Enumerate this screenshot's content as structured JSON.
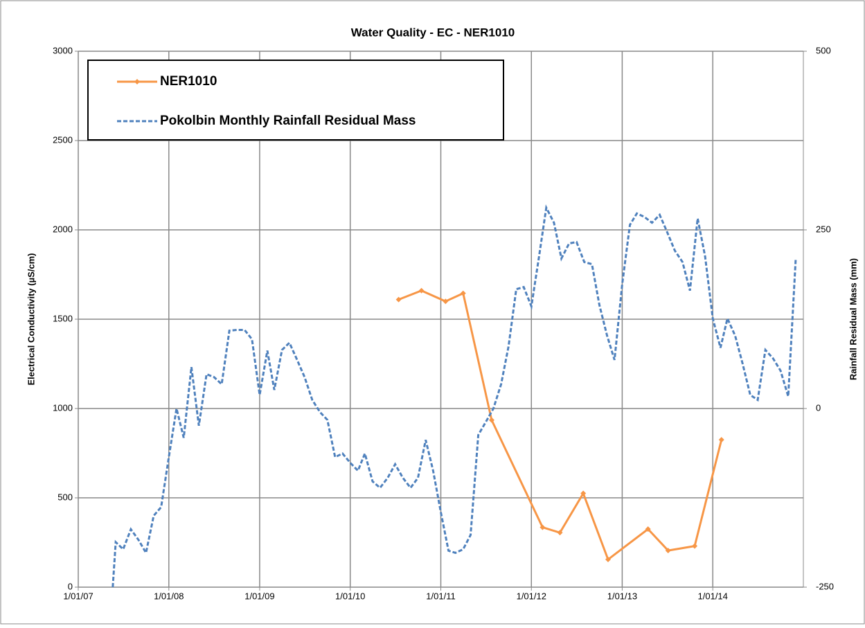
{
  "chart_data": {
    "type": "line",
    "title": "Water Quality - EC - NER1010",
    "y_label": "Electrical Conductivity (µS/cm)",
    "y2_label": "Rainfall Residual Mass (mm)",
    "xlim": [
      "2007-01-01",
      "2015-01-01"
    ],
    "xticks": [
      {
        "value": "2007-01-01",
        "label": "1/01/07"
      },
      {
        "value": "2008-01-01",
        "label": "1/01/08"
      },
      {
        "value": "2009-01-01",
        "label": "1/01/09"
      },
      {
        "value": "2010-01-01",
        "label": "1/01/10"
      },
      {
        "value": "2011-01-01",
        "label": "1/01/11"
      },
      {
        "value": "2012-01-01",
        "label": "1/01/12"
      },
      {
        "value": "2013-01-01",
        "label": "1/01/13"
      },
      {
        "value": "2014-01-01",
        "label": "1/01/14"
      }
    ],
    "ylim": [
      0,
      3000
    ],
    "yticks": [
      0,
      500,
      1000,
      1500,
      2000,
      2500,
      3000
    ],
    "y2lim": [
      -250,
      500
    ],
    "y2ticks": [
      -250,
      0,
      250,
      500
    ],
    "grid": true,
    "legend": "upper left",
    "series": [
      {
        "name": "NER1010",
        "color": "#f79646",
        "dash": false,
        "markers": true,
        "axis": "y",
        "x": [
          "2010-07-15",
          "2010-10-15",
          "2011-01-20",
          "2011-04-01",
          "2011-07-25",
          "2012-02-15",
          "2012-04-25",
          "2012-07-28",
          "2012-11-05",
          "2013-04-15",
          "2013-07-05",
          "2013-10-20",
          "2014-02-05"
        ],
        "values": [
          1610,
          1660,
          1600,
          1645,
          935,
          335,
          305,
          525,
          155,
          325,
          205,
          230,
          825
        ]
      },
      {
        "name": "Pokolbin Monthly Rainfall Residual Mass",
        "color": "#4f81bd",
        "dash": true,
        "markers": false,
        "axis": "y2",
        "x": [
          "2007-05-20",
          "2007-06-01",
          "2007-07-01",
          "2007-08-01",
          "2007-09-01",
          "2007-10-01",
          "2007-11-01",
          "2007-12-01",
          "2008-01-01",
          "2008-02-01",
          "2008-03-01",
          "2008-04-01",
          "2008-05-01",
          "2008-06-01",
          "2008-07-01",
          "2008-08-01",
          "2008-09-01",
          "2008-10-01",
          "2008-11-01",
          "2008-12-01",
          "2009-01-01",
          "2009-02-01",
          "2009-03-01",
          "2009-04-01",
          "2009-05-01",
          "2009-06-01",
          "2009-07-01",
          "2009-08-01",
          "2009-09-01",
          "2009-10-01",
          "2009-11-01",
          "2009-12-01",
          "2010-01-01",
          "2010-02-01",
          "2010-03-01",
          "2010-04-01",
          "2010-05-01",
          "2010-06-01",
          "2010-07-01",
          "2010-08-01",
          "2010-09-01",
          "2010-10-01",
          "2010-11-01",
          "2010-12-01",
          "2011-01-01",
          "2011-02-01",
          "2011-03-01",
          "2011-04-01",
          "2011-05-01",
          "2011-06-01",
          "2011-07-01",
          "2011-08-01",
          "2011-09-01",
          "2011-10-01",
          "2011-11-01",
          "2011-12-01",
          "2012-01-01",
          "2012-02-01",
          "2012-03-01",
          "2012-04-01",
          "2012-05-01",
          "2012-06-01",
          "2012-07-01",
          "2012-08-01",
          "2012-09-01",
          "2012-10-01",
          "2012-11-01",
          "2012-12-01",
          "2013-01-01",
          "2013-02-01",
          "2013-03-01",
          "2013-04-01",
          "2013-05-01",
          "2013-06-01",
          "2013-07-01",
          "2013-08-01",
          "2013-09-01",
          "2013-10-01",
          "2013-11-01",
          "2013-12-01",
          "2014-01-01",
          "2014-02-01",
          "2014-03-01",
          "2014-04-01",
          "2014-05-01",
          "2014-06-01",
          "2014-07-01",
          "2014-08-01",
          "2014-09-01",
          "2014-10-01",
          "2014-11-01",
          "2014-12-01"
        ],
        "values": [
          -250,
          -187,
          -197,
          -169,
          -184,
          -202,
          -150,
          -138,
          -68,
          0,
          -41,
          58,
          -24,
          48,
          44,
          34,
          109,
          110,
          110,
          97,
          19,
          81,
          26,
          82,
          92,
          68,
          44,
          12,
          -5,
          -16,
          -68,
          -63,
          -76,
          -87,
          -63,
          -102,
          -111,
          -97,
          -78,
          -97,
          -111,
          -97,
          -44,
          -87,
          -145,
          -199,
          -202,
          -197,
          -177,
          -37,
          -19,
          0,
          34,
          87,
          167,
          170,
          143,
          213,
          281,
          260,
          210,
          231,
          233,
          205,
          202,
          145,
          102,
          68,
          174,
          257,
          273,
          268,
          260,
          271,
          247,
          221,
          205,
          165,
          266,
          213,
          126,
          85,
          126,
          102,
          63,
          19,
          12,
          82,
          70,
          53,
          17,
          208
        ]
      }
    ]
  }
}
